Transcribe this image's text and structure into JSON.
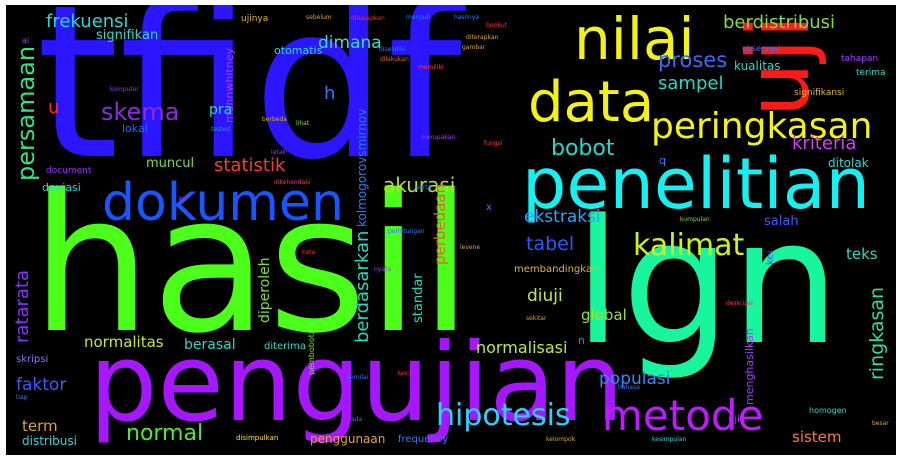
{
  "words": [
    {
      "text": "tfidf",
      "color": "#2b16ff"
    },
    {
      "text": "hasil",
      "color": "#4cff1a"
    },
    {
      "text": "lgn",
      "color": "#19f59c"
    },
    {
      "text": "pengujian",
      "color": "#a617ff"
    },
    {
      "text": "penelitian",
      "color": "#17f0f0"
    },
    {
      "text": "uji",
      "color": "#ff1a1a"
    },
    {
      "text": "nilai",
      "color": "#f2f21a"
    },
    {
      "text": "data",
      "color": "#f2f21a"
    },
    {
      "text": "dokumen",
      "color": "#1a55ff"
    },
    {
      "text": "metode",
      "color": "#bf1aff"
    },
    {
      "text": "peringkasan",
      "color": "#f2f21a"
    },
    {
      "text": "kalimat",
      "color": "#ccf21a"
    },
    {
      "text": "hipotesis",
      "color": "#2ad3ff"
    },
    {
      "text": "persamaan",
      "color": "#37e07d"
    },
    {
      "text": "skema",
      "color": "#8a2be2"
    },
    {
      "text": "frekuensi",
      "color": "#26d9d9"
    },
    {
      "text": "berdistribusi",
      "color": "#7ddf3e"
    },
    {
      "text": "proses",
      "color": "#3a6bff"
    },
    {
      "text": "sampel",
      "color": "#22d9c9"
    },
    {
      "text": "bobot",
      "color": "#22d9d0"
    },
    {
      "text": "statistik",
      "color": "#ff3a2a"
    },
    {
      "text": "akurasi",
      "color": "#b8e020"
    },
    {
      "text": "kriteria",
      "color": "#d63aff"
    },
    {
      "text": "ekstraksi",
      "color": "#2aa6ff"
    },
    {
      "text": "tabel",
      "color": "#2a5bff"
    },
    {
      "text": "ringkasan",
      "color": "#28e0a0"
    },
    {
      "text": "normal",
      "color": "#4fea2a"
    },
    {
      "text": "ratarata",
      "color": "#8a33ff"
    },
    {
      "text": "berdasarkan",
      "color": "#26d9c0"
    },
    {
      "text": "dimana",
      "color": "#36e0d0"
    },
    {
      "text": "diuji",
      "color": "#c4ea2a"
    },
    {
      "text": "global",
      "color": "#9ee02a"
    },
    {
      "text": "normalitas",
      "color": "#c4ea2a"
    },
    {
      "text": "normalisasi",
      "color": "#c4ea2a"
    },
    {
      "text": "populasi",
      "color": "#2a8cff"
    },
    {
      "text": "faktor",
      "color": "#3c5bff"
    },
    {
      "text": "perbedaan",
      "color": "#e0662a"
    },
    {
      "text": "signifikan",
      "color": "#36d9c9"
    },
    {
      "text": "muncul",
      "color": "#7ddf3e"
    },
    {
      "text": "teks",
      "color": "#26d9c0"
    },
    {
      "text": "term",
      "color": "#d9a72a"
    },
    {
      "text": "distribusi",
      "color": "#2ad9d9"
    },
    {
      "text": "sistem",
      "color": "#ff7a2a"
    },
    {
      "text": "penggunaan",
      "color": "#e0a72a"
    },
    {
      "text": "diperoleh",
      "color": "#7ddf3e"
    },
    {
      "text": "berasal",
      "color": "#26d9c9"
    },
    {
      "text": "standar",
      "color": "#26d9c0"
    },
    {
      "text": "salah",
      "color": "#3c5bff"
    },
    {
      "text": "kualitas",
      "color": "#26d9c9"
    },
    {
      "text": "mannwhitney",
      "color": "#a83aff"
    },
    {
      "text": "kolmogorovsmirnov",
      "color": "#2a7cff"
    },
    {
      "text": "ditolak",
      "color": "#2ad9d9"
    },
    {
      "text": "membandingkan",
      "color": "#e0b52a"
    },
    {
      "text": "menghasilkan",
      "color": "#a83aff"
    },
    {
      "text": "pra",
      "color": "#26d9c9"
    },
    {
      "text": "lokal",
      "color": "#2a66ff"
    },
    {
      "text": "deviasi",
      "color": "#26d9d9"
    },
    {
      "text": "document",
      "color": "#9c2aff"
    },
    {
      "text": "skripsi",
      "color": "#7a7aff"
    },
    {
      "text": "diterima",
      "color": "#26d9c9"
    },
    {
      "text": "otomatis",
      "color": "#2ad9d9"
    },
    {
      "text": "ujinya",
      "color": "#e0b52a"
    },
    {
      "text": "kei",
      "color": "#3c5bff"
    },
    {
      "text": "pembobotan",
      "color": "#7ddf3e"
    },
    {
      "text": "frequency",
      "color": "#2a7cff"
    },
    {
      "text": "signifikansi",
      "color": "#e0b52a"
    },
    {
      "text": "terima",
      "color": "#26d9c9"
    },
    {
      "text": "tahapan",
      "color": "#a83aff"
    },
    {
      "text": "homogen",
      "color": "#26d9c9"
    },
    {
      "text": "ujit",
      "color": "#a83aff"
    },
    {
      "text": "disimpulkan",
      "color": "#ffe02a"
    },
    {
      "text": "h",
      "color": "#2a7cff"
    },
    {
      "text": "u",
      "color": "#ff2a2a"
    },
    {
      "text": "ai",
      "color": "#a83aff"
    },
    {
      "text": "wf",
      "color": "#9c2aff"
    },
    {
      "text": "komputer",
      "color": "#9c2aff"
    },
    {
      "text": "tested",
      "color": "#2a9c9c"
    },
    {
      "text": "berbeda",
      "color": "#d9a72a"
    },
    {
      "text": "lihat",
      "color": "#7ddf3e"
    },
    {
      "text": "letak",
      "color": "#9c2aff"
    },
    {
      "text": "dikehendaki",
      "color": "#ff2a5b"
    },
    {
      "text": "diselidiki",
      "color": "#2a7cff"
    },
    {
      "text": "dilakukan",
      "color": "#e0662a"
    },
    {
      "text": "diharapkan",
      "color": "#ff2a2a"
    },
    {
      "text": "sebelum",
      "color": "#d9a72a"
    },
    {
      "text": "menjadi",
      "color": "#2a7cff"
    },
    {
      "text": "hasilnya",
      "color": "#2a7cff"
    },
    {
      "text": "memiliki",
      "color": "#ff3a2a"
    },
    {
      "text": "berikut",
      "color": "#ff2a2a"
    },
    {
      "text": "diterapkan",
      "color": "#d9a72a"
    },
    {
      "text": "observasi",
      "color": "#3a6bff"
    },
    {
      "text": "gambar",
      "color": "#d9a72a"
    },
    {
      "text": "fungsi",
      "color": "#ff3a2a"
    },
    {
      "text": "merupakan",
      "color": "#a83aff"
    },
    {
      "text": "kumpulan",
      "color": "#7ddf3e"
    },
    {
      "text": "perhitungan",
      "color": "#2a7cff"
    },
    {
      "text": "levene",
      "color": "#d9a72a"
    },
    {
      "text": "nyata",
      "color": "#a83aff"
    },
    {
      "text": "sekitar",
      "color": "#d9a72a"
    },
    {
      "text": "deskripsi",
      "color": "#ff2a5b"
    },
    {
      "text": "bahasa",
      "color": "#2a7cff"
    },
    {
      "text": "kelompok",
      "color": "#d9a72a"
    },
    {
      "text": "kesimpulan",
      "color": "#2ad9d9"
    },
    {
      "text": "bernilai",
      "color": "#2a7cff"
    },
    {
      "text": "kecil",
      "color": "#ff2a5b"
    },
    {
      "text": "ada",
      "color": "#2a7cff"
    },
    {
      "text": "kata",
      "color": "#ff2a2a"
    },
    {
      "text": "serta",
      "color": "#2a7cff"
    },
    {
      "text": "tiap",
      "color": "#2a7cff"
    },
    {
      "text": "besar",
      "color": "#d9a72a"
    },
    {
      "text": "q",
      "color": "#2a7cff"
    },
    {
      "text": "n",
      "color": "#2a7cff"
    },
    {
      "text": "x",
      "color": "#2a7cff"
    }
  ]
}
